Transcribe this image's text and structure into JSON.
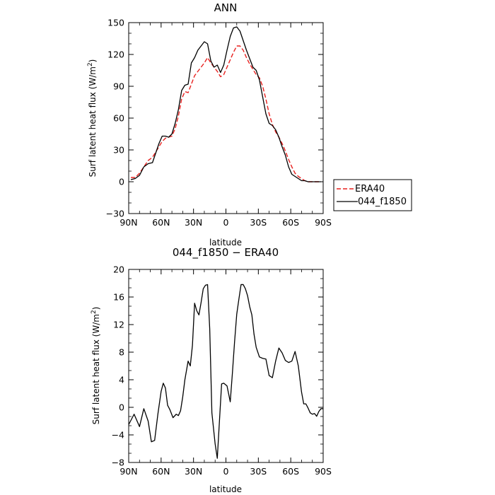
{
  "chart_data": [
    {
      "type": "line",
      "title": "ANN",
      "xlabel": "latitude",
      "ylabel": "Surf latent heat flux (W/m",
      "ylabel_sup": "2",
      "ylabel_close": ")",
      "xlim": [
        90,
        -90
      ],
      "ylim": [
        -30,
        150
      ],
      "x_ticks": [
        90,
        60,
        30,
        0,
        -30,
        -60,
        -90
      ],
      "x_tick_labels": [
        "90N",
        "60N",
        "30N",
        "0",
        "30S",
        "60S",
        "90S"
      ],
      "y_ticks": [
        -30,
        0,
        30,
        60,
        90,
        120,
        150
      ],
      "y_tick_labels": [
        "−30",
        "0",
        "30",
        "60",
        "90",
        "120",
        "150"
      ],
      "legend_position": "right",
      "series": [
        {
          "name": "ERA40",
          "color": "#e8211f",
          "dash": "dashed",
          "x": [
            88,
            84,
            80,
            76,
            72,
            68,
            65,
            62,
            59,
            56,
            53,
            50,
            47,
            44,
            41,
            38,
            35,
            32,
            29,
            26,
            23,
            20,
            17,
            14,
            11,
            8,
            5,
            2,
            -1,
            -4,
            -7,
            -10,
            -13,
            -16,
            -19,
            -22,
            -25,
            -28,
            -31,
            -34,
            -37,
            -40,
            -43,
            -46,
            -49,
            -52,
            -55,
            -58,
            -61,
            -64,
            -67,
            -70,
            -73,
            -76,
            -79,
            -82,
            -85,
            -88
          ],
          "y": [
            4,
            4,
            8,
            14,
            20,
            23,
            28,
            33,
            38,
            41,
            42,
            43,
            50,
            62,
            78,
            85,
            84,
            92,
            100,
            104,
            108,
            112,
            117,
            112,
            108,
            104,
            99,
            101,
            108,
            115,
            122,
            128,
            128,
            124,
            117,
            111,
            106,
            101,
            98,
            90,
            78,
            64,
            54,
            47,
            42,
            36,
            29,
            21,
            14,
            8,
            5,
            3,
            1,
            0,
            0,
            0,
            0,
            0
          ]
        },
        {
          "name": "044_f1850",
          "color": "#000000",
          "dash": "solid",
          "x": [
            88,
            84,
            80,
            76,
            72,
            68,
            65,
            62,
            59,
            56,
            53,
            50,
            47,
            44,
            41,
            38,
            35,
            32,
            29,
            26,
            23,
            20,
            17,
            14,
            11,
            8,
            5,
            2,
            -1,
            -4,
            -7,
            -10,
            -13,
            -16,
            -19,
            -22,
            -25,
            -28,
            -31,
            -34,
            -37,
            -40,
            -43,
            -46,
            -49,
            -52,
            -55,
            -58,
            -61,
            -64,
            -67,
            -70,
            -73,
            -76,
            -79,
            -82,
            -85,
            -88
          ],
          "y": [
            2,
            3,
            6,
            14,
            17,
            18,
            27,
            36,
            43,
            43,
            42,
            45,
            55,
            68,
            86,
            91,
            92,
            112,
            117,
            124,
            128,
            132,
            130,
            114,
            108,
            110,
            103,
            110,
            124,
            137,
            145,
            146,
            142,
            133,
            124,
            116,
            108,
            105,
            96,
            80,
            64,
            55,
            53,
            49,
            42,
            33,
            25,
            14,
            7,
            5,
            3,
            1,
            1,
            0,
            0,
            0,
            0,
            0
          ]
        }
      ]
    },
    {
      "type": "line",
      "title": "044_f1850 − ERA40",
      "xlabel": "latitude",
      "ylabel": "Surf latent heat flux (W/m",
      "ylabel_sup": "2",
      "ylabel_close": ")",
      "xlim": [
        90,
        -90
      ],
      "ylim": [
        -8,
        20
      ],
      "x_ticks": [
        90,
        60,
        30,
        0,
        -30,
        -60,
        -90
      ],
      "x_tick_labels": [
        "90N",
        "60N",
        "30N",
        "0",
        "30S",
        "60S",
        "90S"
      ],
      "y_ticks": [
        -8,
        -4,
        0,
        4,
        8,
        12,
        16,
        20
      ],
      "y_tick_labels": [
        "−8",
        "−4",
        "0",
        "4",
        "8",
        "12",
        "16",
        "20"
      ],
      "series": [
        {
          "name": "",
          "color": "#000000",
          "dash": "solid",
          "x": [
            90,
            85,
            80,
            76,
            72,
            69,
            66,
            63,
            60,
            58,
            56,
            54,
            52,
            49,
            46,
            44,
            42,
            40,
            38,
            35,
            33,
            31,
            29,
            27,
            25,
            23,
            21,
            19,
            17,
            15,
            13,
            10,
            8,
            6,
            4,
            2,
            -1,
            -4,
            -6,
            -8,
            -10,
            -12,
            -14,
            -16,
            -18,
            -20,
            -22,
            -24,
            -26,
            -28,
            -31,
            -34,
            -37,
            -40,
            -43,
            -46,
            -49,
            -52,
            -55,
            -58,
            -61,
            -64,
            -67,
            -70,
            -72,
            -74,
            -76,
            -78,
            -80,
            -82,
            -84,
            -86,
            -88,
            -90
          ],
          "y": [
            -2.5,
            -1.0,
            -2.8,
            -0.2,
            -2.0,
            -5.0,
            -4.8,
            -1.0,
            2.3,
            3.5,
            2.8,
            0.3,
            -0.3,
            -1.5,
            -1.0,
            -1.2,
            -0.5,
            1.5,
            4.0,
            6.7,
            6.0,
            9.0,
            15.1,
            14.0,
            13.4,
            15.2,
            17.2,
            17.7,
            17.8,
            11.4,
            -0.8,
            -5.3,
            -7.4,
            -2.0,
            3.4,
            3.5,
            3.1,
            0.8,
            5.0,
            9.5,
            13.5,
            15.7,
            17.8,
            17.8,
            17.2,
            16.2,
            14.6,
            13.4,
            10.6,
            8.7,
            7.3,
            7.1,
            7.0,
            4.6,
            4.3,
            6.7,
            8.6,
            7.9,
            6.8,
            6.5,
            6.7,
            8.1,
            6.0,
            2.2,
            0.5,
            0.5,
            -0.1,
            -0.8,
            -1.0,
            -0.9,
            -1.3,
            -0.6,
            -0.2,
            -0.2
          ]
        }
      ]
    }
  ]
}
